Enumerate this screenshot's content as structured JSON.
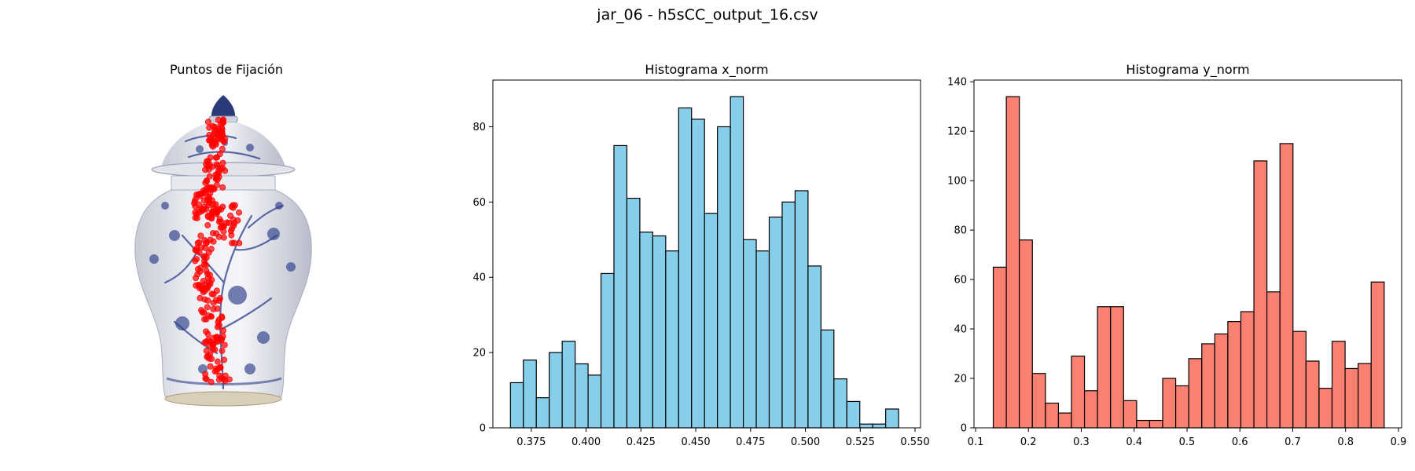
{
  "suptitle": "jar_06 - h5sCC_output_16.csv",
  "chart_data": [
    {
      "type": "scatter",
      "title": "Puntos de Fijación",
      "background": "jar-image",
      "point_color": "#ff0000",
      "axes": "off",
      "x_range": [
        0,
        1
      ],
      "y_range": [
        0,
        1
      ],
      "clusters": [
        {
          "x": [
            0.4,
            0.5
          ],
          "y": [
            0.1,
            0.19
          ]
        },
        {
          "x": [
            0.36,
            0.5
          ],
          "y": [
            0.2,
            0.32
          ]
        },
        {
          "x": [
            0.32,
            0.46
          ],
          "y": [
            0.32,
            0.4
          ]
        },
        {
          "x": [
            0.4,
            0.58
          ],
          "y": [
            0.36,
            0.48
          ]
        },
        {
          "x": [
            0.33,
            0.43
          ],
          "y": [
            0.44,
            0.62
          ]
        },
        {
          "x": [
            0.35,
            0.5
          ],
          "y": [
            0.6,
            0.78
          ]
        },
        {
          "x": [
            0.38,
            0.53
          ],
          "y": [
            0.76,
            0.9
          ]
        }
      ]
    },
    {
      "type": "bar",
      "title": "Histograma x_norm",
      "color": "#87ceeb",
      "edge_color": "#000000",
      "bin_start": 0.3655,
      "bin_width": 0.0059,
      "values": [
        12,
        18,
        8,
        20,
        23,
        17,
        14,
        41,
        75,
        61,
        52,
        51,
        47,
        85,
        82,
        57,
        80,
        88,
        50,
        47,
        56,
        60,
        63,
        43,
        26,
        13,
        7,
        1,
        1,
        5
      ],
      "xlim": [
        0.3575,
        0.5525
      ],
      "ylim": [
        0,
        92.4
      ],
      "xticks": [
        0.375,
        0.4,
        0.425,
        0.45,
        0.475,
        0.5,
        0.525,
        0.55
      ],
      "xtick_labels": [
        "0.375",
        "0.400",
        "0.425",
        "0.450",
        "0.475",
        "0.500",
        "0.525",
        "0.550"
      ],
      "yticks": [
        0,
        20,
        40,
        60,
        80
      ],
      "ytick_labels": [
        "0",
        "20",
        "40",
        "60",
        "80"
      ]
    },
    {
      "type": "bar",
      "title": "Histograma y_norm",
      "color": "#fa8072",
      "edge_color": "#000000",
      "bin_start": 0.1335,
      "bin_width": 0.02465,
      "values": [
        65,
        134,
        76,
        22,
        10,
        6,
        29,
        15,
        49,
        49,
        11,
        3,
        3,
        20,
        17,
        28,
        34,
        38,
        43,
        47,
        108,
        55,
        115,
        39,
        27,
        16,
        35,
        24,
        26,
        59
      ],
      "xlim": [
        0.097,
        0.906
      ],
      "ylim": [
        0,
        140.7
      ],
      "xticks": [
        0.1,
        0.2,
        0.3,
        0.4,
        0.5,
        0.6,
        0.7,
        0.8,
        0.9
      ],
      "xtick_labels": [
        "0.1",
        "0.2",
        "0.3",
        "0.4",
        "0.5",
        "0.6",
        "0.7",
        "0.8",
        "0.9"
      ],
      "yticks": [
        0,
        20,
        40,
        60,
        80,
        100,
        120,
        140
      ],
      "ytick_labels": [
        "0",
        "20",
        "40",
        "60",
        "80",
        "100",
        "120",
        "140"
      ]
    }
  ]
}
